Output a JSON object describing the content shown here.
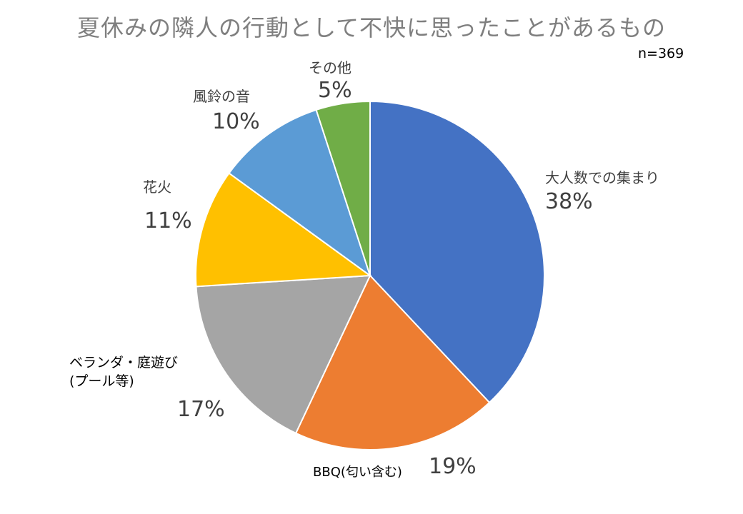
{
  "chart_data": {
    "type": "pie",
    "title": "夏休みの隣人の行動として不快に思ったことがあるもの",
    "note": "n=369",
    "slices": [
      {
        "label": "大人数での集まり",
        "value": 38,
        "value_label": "38%",
        "color": "#4472C4"
      },
      {
        "label": "BBQ(匂い含む)",
        "value": 19,
        "value_label": "19%",
        "color": "#ED7D31"
      },
      {
        "label": "ベランダ・庭遊び\n(プール等)",
        "value": 17,
        "value_label": "17%",
        "color": "#A5A5A5"
      },
      {
        "label": "花火",
        "value": 11,
        "value_label": "11%",
        "color": "#FFC000"
      },
      {
        "label": "風鈴の音",
        "value": 10,
        "value_label": "10%",
        "color": "#5B9BD5"
      },
      {
        "label": "その他",
        "value": 5,
        "value_label": "5%",
        "color": "#70AD47"
      }
    ]
  }
}
